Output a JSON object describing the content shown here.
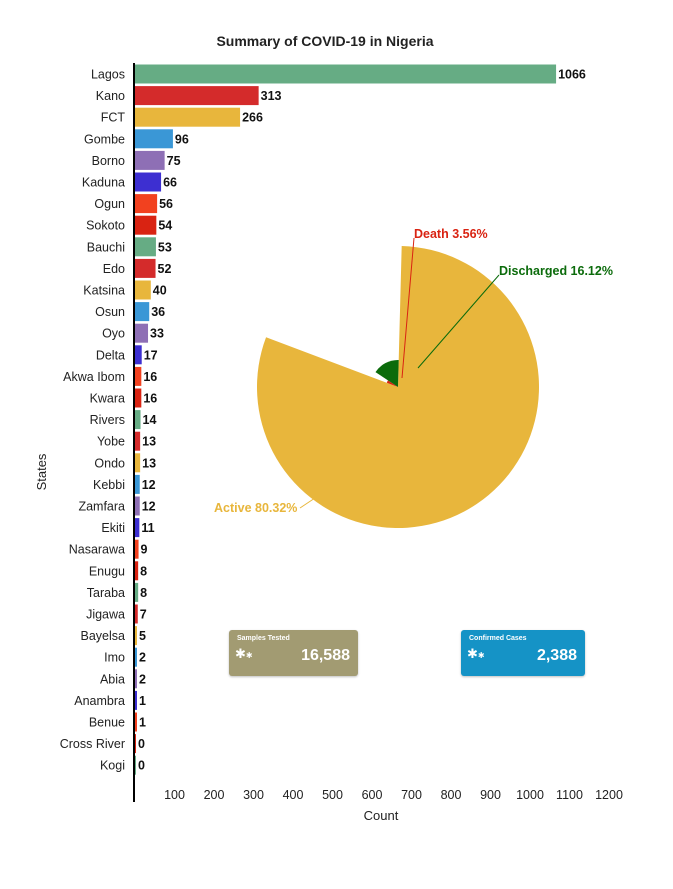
{
  "chart_data": [
    {
      "type": "bar",
      "orientation": "horizontal",
      "title": "Summary of COVID-19 in Nigeria",
      "xlabel": "Count",
      "ylabel": "States",
      "xlim": [
        0,
        1200
      ],
      "x_ticks": [
        100,
        200,
        300,
        400,
        500,
        600,
        700,
        800,
        900,
        1000,
        1100,
        1200
      ],
      "categories": [
        "Lagos",
        "Kano",
        "FCT",
        "Gombe",
        "Borno",
        "Kaduna",
        "Ogun",
        "Sokoto",
        "Bauchi",
        "Edo",
        "Katsina",
        "Osun",
        "Oyo",
        "Delta",
        "Akwa Ibom",
        "Kwara",
        "Rivers",
        "Yobe",
        "Ondo",
        "Kebbi",
        "Zamfara",
        "Ekiti",
        "Nasarawa",
        "Enugu",
        "Taraba",
        "Jigawa",
        "Bayelsa",
        "Imo",
        "Abia",
        "Anambra",
        "Benue",
        "Cross River",
        "Kogi"
      ],
      "values": [
        1066,
        313,
        266,
        96,
        75,
        66,
        56,
        54,
        53,
        52,
        40,
        36,
        33,
        17,
        16,
        16,
        14,
        13,
        13,
        12,
        12,
        11,
        9,
        8,
        8,
        7,
        5,
        2,
        2,
        1,
        1,
        0,
        0
      ],
      "colors": [
        "#66ac84",
        "#d42b2b",
        "#e8b63c",
        "#3a97d6",
        "#8e6fb5",
        "#3d2fd1",
        "#f2411f",
        "#d92312",
        "#66ac84",
        "#d42b2b",
        "#e8b63c",
        "#3a97d6",
        "#8e6fb5",
        "#3d2fd1",
        "#f2411f",
        "#d92312",
        "#66ac84",
        "#d42b2b",
        "#e8b63c",
        "#3a97d6",
        "#8e6fb5",
        "#3d2fd1",
        "#f2411f",
        "#d92312",
        "#66ac84",
        "#d42b2b",
        "#e8b63c",
        "#3a97d6",
        "#8e6fb5",
        "#3d2fd1",
        "#f2411f",
        "#d92312",
        "#66ac84"
      ],
      "grid": false,
      "legend": "none"
    },
    {
      "type": "pie",
      "slices": [
        {
          "label": "Active 80.32%",
          "value": 80.32,
          "color": "#e8b63c"
        },
        {
          "label": "Death 3.56%",
          "value": 3.56,
          "color": "#d92312"
        },
        {
          "label": "Discharged 16.12%",
          "value": 16.12,
          "color": "#0b6b0b"
        }
      ]
    }
  ],
  "cards": [
    {
      "title": "Samples Tested",
      "value": "16,588",
      "icon": "virus-icon",
      "color": "#a29b72"
    },
    {
      "title": "Confirmed Cases",
      "value": "2,388",
      "icon": "virus-icon",
      "color": "#1593c6"
    }
  ]
}
